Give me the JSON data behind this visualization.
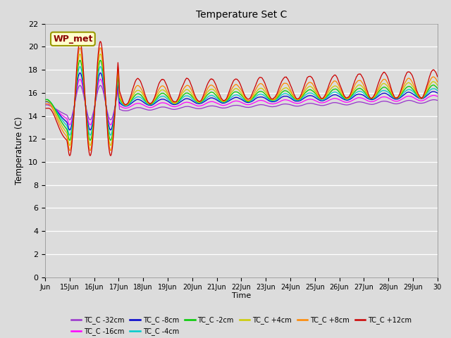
{
  "title": "Temperature Set C",
  "xlabel": "Time",
  "ylabel": "Temperature (C)",
  "ylim": [
    0,
    22
  ],
  "yticks": [
    0,
    2,
    4,
    6,
    8,
    10,
    12,
    14,
    16,
    18,
    20,
    22
  ],
  "bg_color": "#dcdcdc",
  "series": [
    {
      "label": "TC_C -32cm",
      "color": "#9933cc"
    },
    {
      "label": "TC_C -16cm",
      "color": "#ff00ff"
    },
    {
      "label": "TC_C -8cm",
      "color": "#0000cc"
    },
    {
      "label": "TC_C -4cm",
      "color": "#00cccc"
    },
    {
      "label": "TC_C -2cm",
      "color": "#00cc00"
    },
    {
      "label": "TC_C +4cm",
      "color": "#cccc00"
    },
    {
      "label": "TC_C +8cm",
      "color": "#ff8800"
    },
    {
      "label": "TC_C +12cm",
      "color": "#cc0000"
    }
  ],
  "annotation_text": "WP_met",
  "xtick_labels": [
    "Jun",
    "15Jun",
    "16Jun",
    "17Jun",
    "18Jun",
    "19Jun",
    "20Jun",
    "21Jun",
    "22Jun",
    "23Jun",
    "24Jun",
    "25Jun",
    "26Jun",
    "27Jun",
    "28Jun",
    "29Jun",
    "30"
  ]
}
